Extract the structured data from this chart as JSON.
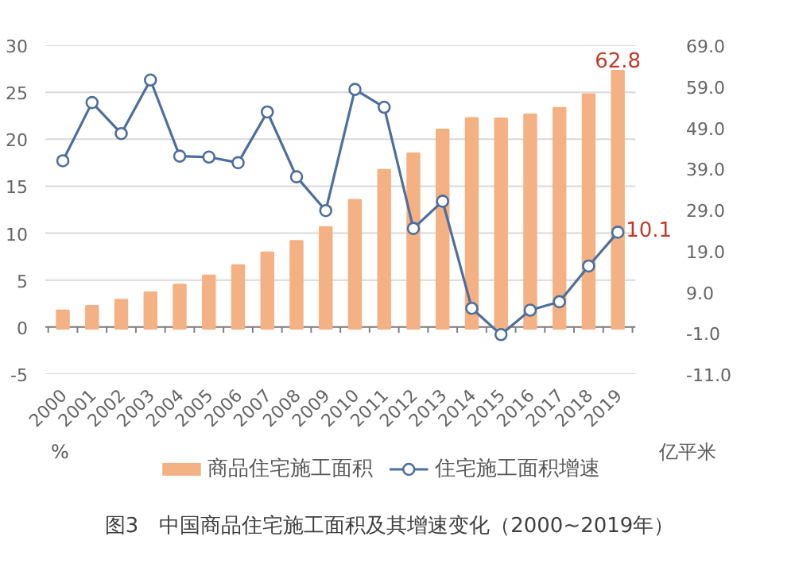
{
  "chart_data": {
    "type": "bar",
    "categories": [
      "2000",
      "2001",
      "2002",
      "2003",
      "2004",
      "2005",
      "2006",
      "2007",
      "2008",
      "2009",
      "2010",
      "2011",
      "2012",
      "2013",
      "2014",
      "2015",
      "2016",
      "2017",
      "2018",
      "2019"
    ],
    "series": [
      {
        "name": "商品住宅施工面积",
        "axis": "y2",
        "color": "#f4b183",
        "values": [
          4.5,
          5.6,
          7.1,
          8.9,
          10.8,
          13.0,
          15.5,
          18.6,
          21.4,
          24.8,
          31.4,
          38.7,
          42.7,
          48.5,
          51.3,
          51.2,
          52.2,
          53.8,
          57.1,
          62.8
        ],
        "value_labels": [
          null,
          null,
          null,
          null,
          null,
          null,
          null,
          null,
          null,
          null,
          null,
          null,
          null,
          null,
          null,
          null,
          null,
          null,
          null,
          "62.8"
        ]
      },
      {
        "name": "住宅施工面积增速",
        "type": "line",
        "color": "#4e6e9e",
        "marker": "circle",
        "values": [
          17.7,
          23.9,
          20.6,
          26.3,
          18.2,
          18.1,
          17.5,
          22.9,
          16.0,
          12.4,
          25.3,
          23.4,
          10.5,
          13.4,
          2.0,
          -0.8,
          1.8,
          2.7,
          6.5,
          10.1
        ],
        "value_labels": [
          null,
          null,
          null,
          null,
          null,
          null,
          null,
          null,
          null,
          null,
          null,
          null,
          null,
          null,
          null,
          null,
          null,
          null,
          null,
          "10.1"
        ]
      }
    ],
    "ylim": [
      -5,
      30
    ],
    "yticks": [
      30,
      25,
      20,
      15,
      10,
      5,
      0,
      -5
    ],
    "y2lim": [
      -11,
      69
    ],
    "y2ticks": [
      {
        "value": 69,
        "label": "69.0"
      },
      {
        "value": 59,
        "label": "59.0"
      },
      {
        "value": 49,
        "label": "49.0"
      },
      {
        "value": 39,
        "label": "39.0"
      },
      {
        "value": 29,
        "label": "29.0"
      },
      {
        "value": 19,
        "label": "19.0"
      },
      {
        "value": 9,
        "label": "9.0"
      },
      {
        "value": -1,
        "label": "-1.0"
      },
      {
        "value": -11,
        "label": "-11.0"
      }
    ],
    "grid": "y",
    "legend": "bottom",
    "annotations": [
      "%",
      "亿平米",
      "图3　中国商品住宅施工面积及其增速变化（2000~2019年）"
    ]
  }
}
